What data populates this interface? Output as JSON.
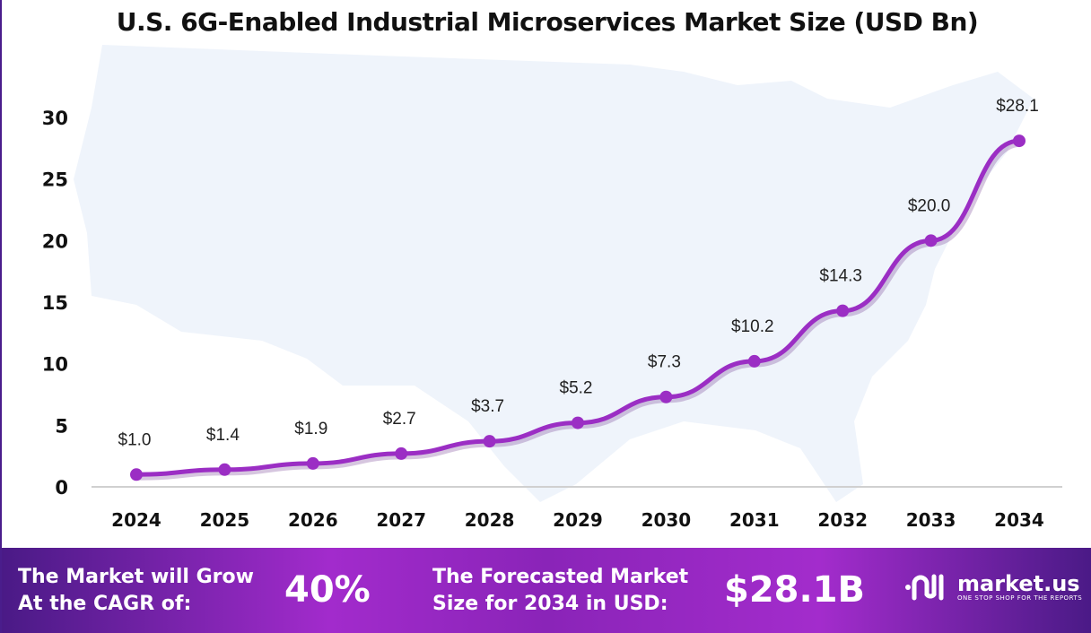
{
  "chart_data": {
    "type": "line",
    "title": "U.S. 6G-Enabled Industrial Microservices Market Size (USD Bn)",
    "categories": [
      "2024",
      "2025",
      "2026",
      "2027",
      "2028",
      "2029",
      "2030",
      "2031",
      "2032",
      "2033",
      "2034"
    ],
    "values": [
      1.0,
      1.4,
      1.9,
      2.7,
      3.7,
      5.2,
      7.3,
      10.2,
      14.3,
      20.0,
      28.1
    ],
    "data_labels": [
      "$1.0",
      "$1.4",
      "$1.9",
      "$2.7",
      "$3.7",
      "$5.2",
      "$7.3",
      "$10.2",
      "$14.3",
      "$20.0",
      "$28.1"
    ],
    "yticks": [
      0,
      5,
      10,
      15,
      20,
      25,
      30
    ],
    "ylim": [
      0,
      30
    ],
    "grid": false,
    "line_color": "#9b2ec4",
    "background": "US map silhouette"
  },
  "banner": {
    "cagr_label_1": "The Market will Grow",
    "cagr_label_2": "At the CAGR of:",
    "cagr_value": "40%",
    "forecast_label_1": "The Forecasted Market",
    "forecast_label_2": "Size for 2034 in USD:",
    "forecast_value": "$28.1B",
    "logo_name": "market.us",
    "logo_tagline": "ONE STOP SHOP FOR THE REPORTS"
  }
}
